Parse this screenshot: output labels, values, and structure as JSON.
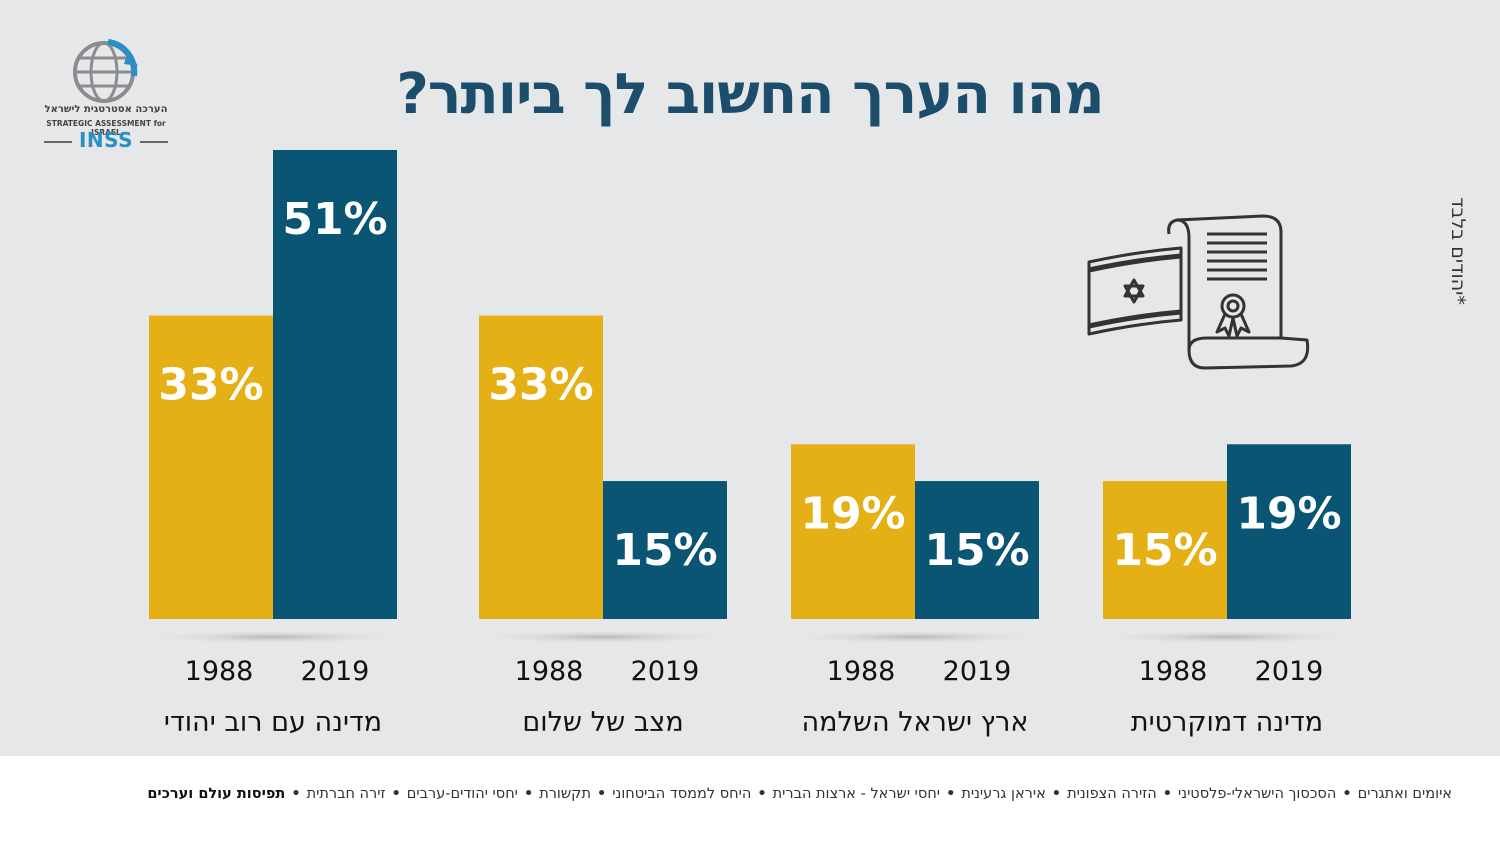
{
  "header": {
    "title": "מהו הערך החשוב לך ביותר?"
  },
  "note": "*יהודים בלבד",
  "logo": {
    "hebrew": "הערכה אסטרטגית לישראל",
    "english": "STRATEGIC ASSESSMENT for ISRAEL",
    "brand": "INSS"
  },
  "colors": {
    "year1988": "#e5b016",
    "year2019": "#0a5573",
    "background": "#e6e7e9",
    "title": "#1c4d6b"
  },
  "chart_data": {
    "type": "bar",
    "categories": [
      "מדינה עם רוב יהודי",
      "מצב של שלום",
      "ארץ ישראל השלמה",
      "מדינה דמוקרטית"
    ],
    "series": [
      {
        "name": "1988",
        "values": [
          33,
          33,
          19,
          15
        ],
        "labels": [
          "33%",
          "33%",
          "19%",
          "15%"
        ]
      },
      {
        "name": "2019",
        "values": [
          51,
          15,
          15,
          19
        ],
        "labels": [
          "51%",
          "15%",
          "15%",
          "19%"
        ]
      }
    ],
    "ylim": [
      0,
      51
    ],
    "title": "מהו הערך החשוב לך ביותר?",
    "xlabel": "",
    "ylabel": ""
  },
  "footer": {
    "items": [
      "איומים ואתגרים",
      "הסכסוך הישראלי-פלסטיני",
      "הזירה הצפונית",
      "איראן גרעינית",
      "יחסי ישראל - ארצות הברית",
      "היחס לממסד הביטחוני",
      "תקשורת",
      "יחסי יהודים-ערבים",
      "זירה חברתית"
    ],
    "highlight": "תפיסות עולם וערכים",
    "separator": "•"
  }
}
